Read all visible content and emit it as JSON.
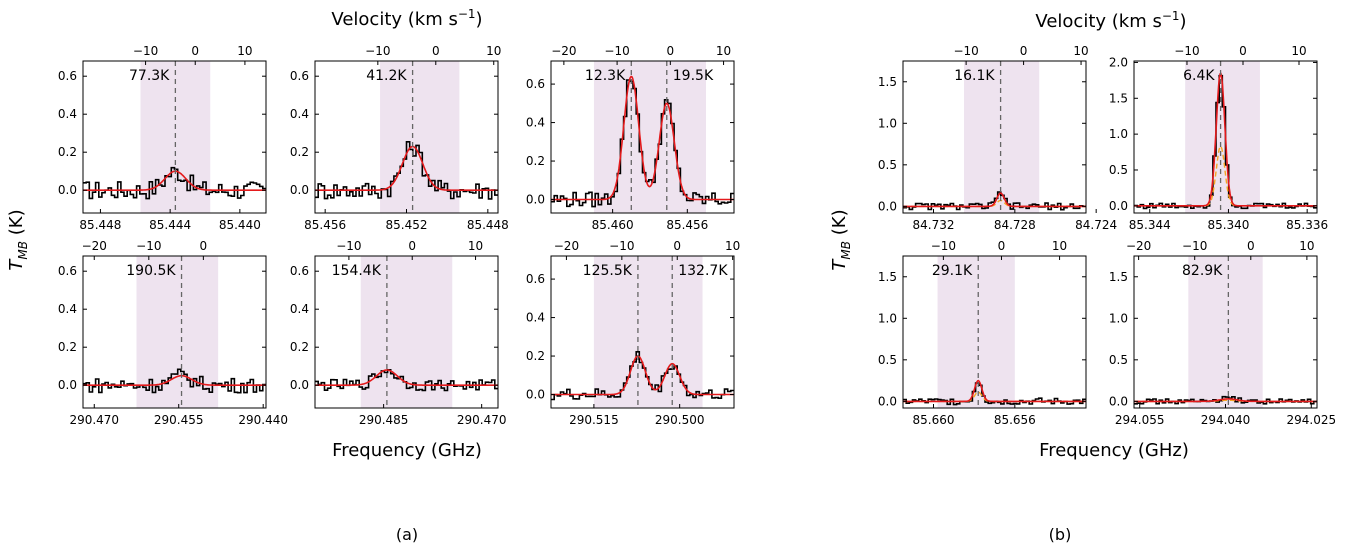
{
  "figure": {
    "top_axis_label": "Velocity (km s$^{-1}$)",
    "top_axis_label_text": "Velocity (km s",
    "top_axis_label_sup": "−1",
    "top_axis_label_close": ")",
    "y_axis_label": "T",
    "y_axis_label_sub": "MB",
    "y_axis_label_unit": " (K)",
    "x_axis_label": "Frequency (GHz)",
    "captions": [
      "(a)",
      "(b)"
    ],
    "colors": {
      "spectrum": "#000000",
      "fit": "#e41a1c",
      "component_orange": "#f5a623",
      "component_blue": "#5b5bd6",
      "shading": "#eee3ef",
      "marker": "#666666"
    }
  },
  "chart_data": [
    {
      "type": "line",
      "panel": "a-1",
      "x_range": [
        85.449,
        85.4385
      ],
      "x_ticks": [
        85.448,
        85.444,
        85.44
      ],
      "x_tick_labels": [
        "85.448",
        "85.444",
        "85.440"
      ],
      "ylim": [
        -0.12,
        0.68
      ],
      "y_ticks": [
        0.0,
        0.2,
        0.4,
        0.6
      ],
      "y_tick_labels": [
        "0.0",
        "0.2",
        "0.4",
        "0.6"
      ],
      "vel_ticks": [
        -10,
        0,
        10
      ],
      "vel_tick_labels": [
        "−10",
        "0",
        "10"
      ],
      "shade": [
        85.4457,
        85.4417
      ],
      "lines": [
        {
          "center": 85.4437,
          "label": "77.3K",
          "amp": 0.1,
          "sigma": 0.0006
        }
      ],
      "baseline": 0.0,
      "noise": 0.05
    },
    {
      "type": "line",
      "panel": "a-2",
      "x_range": [
        85.4565,
        85.4475
      ],
      "x_ticks": [
        85.456,
        85.452,
        85.448
      ],
      "x_tick_labels": [
        "85.456",
        "85.452",
        "85.448"
      ],
      "ylim": [
        -0.12,
        0.68
      ],
      "y_ticks": [
        0.0,
        0.2,
        0.4,
        0.6
      ],
      "y_tick_labels": [
        "0.0",
        "0.2",
        "0.4",
        "0.6"
      ],
      "vel_ticks": [
        -10,
        0,
        10
      ],
      "vel_tick_labels": [
        "−10",
        "0",
        "10"
      ],
      "shade": [
        85.4533,
        85.4494
      ],
      "lines": [
        {
          "center": 85.4517,
          "label": "41.2K",
          "amp": 0.23,
          "sigma": 0.0005
        }
      ],
      "baseline": 0.0,
      "noise": 0.05
    },
    {
      "type": "line",
      "panel": "a-3",
      "x_range": [
        85.4633,
        85.4535
      ],
      "x_ticks": [
        85.46,
        85.456
      ],
      "x_tick_labels": [
        "85.460",
        "85.456"
      ],
      "ylim": [
        -0.07,
        0.72
      ],
      "y_ticks": [
        0.0,
        0.2,
        0.4,
        0.6
      ],
      "y_tick_labels": [
        "0.0",
        "0.2",
        "0.4",
        "0.6"
      ],
      "vel_ticks": [
        -20,
        -10,
        0,
        10
      ],
      "vel_tick_labels": [
        "−20",
        "−10",
        "0",
        "10"
      ],
      "shade": [
        85.461,
        85.455
      ],
      "lines": [
        {
          "center": 85.459,
          "label": "12.3K",
          "amp": 0.64,
          "sigma": 0.0004
        },
        {
          "center": 85.4571,
          "label": "19.5K",
          "amp": 0.5,
          "sigma": 0.0004
        }
      ],
      "baseline": 0.0,
      "noise": 0.04
    },
    {
      "type": "line",
      "panel": "a-4",
      "x_range": [
        290.472,
        290.4395
      ],
      "x_ticks": [
        290.47,
        290.455,
        290.44
      ],
      "x_tick_labels": [
        "290.470",
        "290.455",
        "290.440"
      ],
      "ylim": [
        -0.12,
        0.68
      ],
      "y_ticks": [
        0.0,
        0.2,
        0.4,
        0.6
      ],
      "y_tick_labels": [
        "0.0",
        "0.2",
        "0.4",
        "0.6"
      ],
      "vel_ticks": [
        -20,
        -10,
        0
      ],
      "vel_tick_labels": [
        "−20",
        "−10",
        "0"
      ],
      "shade": [
        290.4625,
        290.448
      ],
      "lines": [
        {
          "center": 290.4545,
          "label": "190.5K",
          "amp": 0.05,
          "sigma": 0.0018
        }
      ],
      "baseline": 0.0,
      "noise": 0.04
    },
    {
      "type": "line",
      "panel": "a-5",
      "x_range": [
        290.4955,
        290.4675
      ],
      "x_ticks": [
        290.485,
        290.47
      ],
      "x_tick_labels": [
        "290.485",
        "290.470"
      ],
      "ylim": [
        -0.12,
        0.68
      ],
      "y_ticks": [
        0.0,
        0.2,
        0.4,
        0.6
      ],
      "y_tick_labels": [
        "0.0",
        "0.2",
        "0.4",
        "0.6"
      ],
      "vel_ticks": [
        -10,
        0,
        10
      ],
      "vel_tick_labels": [
        "−10",
        "0",
        "10"
      ],
      "shade": [
        290.4885,
        290.4745
      ],
      "lines": [
        {
          "center": 290.4845,
          "label": "154.4K",
          "amp": 0.08,
          "sigma": 0.0016
        }
      ],
      "baseline": 0.0,
      "noise": 0.03
    },
    {
      "type": "line",
      "panel": "a-6",
      "x_range": [
        290.5225,
        290.4905
      ],
      "x_ticks": [
        290.515,
        290.5
      ],
      "x_tick_labels": [
        "290.515",
        "290.500"
      ],
      "ylim": [
        -0.07,
        0.72
      ],
      "y_ticks": [
        0.0,
        0.2,
        0.4,
        0.6
      ],
      "y_tick_labels": [
        "0.0",
        "0.2",
        "0.4",
        "0.6"
      ],
      "vel_ticks": [
        -20,
        -10,
        0,
        10
      ],
      "vel_tick_labels": [
        "−20",
        "−10",
        "0",
        "10"
      ],
      "shade": [
        290.515,
        290.496
      ],
      "lines": [
        {
          "center": 290.5073,
          "label": "125.5K",
          "amp": 0.2,
          "sigma": 0.0013
        },
        {
          "center": 290.5013,
          "label": "132.7K",
          "amp": 0.16,
          "sigma": 0.0013
        }
      ],
      "baseline": 0.0,
      "noise": 0.03
    },
    {
      "type": "line",
      "panel": "b-1",
      "x_range": [
        84.7335,
        84.7245
      ],
      "x_ticks": [
        84.732,
        84.728,
        84.724
      ],
      "x_tick_labels": [
        "84.732",
        "84.728",
        "84.724"
      ],
      "ylim": [
        -0.08,
        1.75
      ],
      "y_ticks": [
        0.0,
        0.5,
        1.0,
        1.5
      ],
      "y_tick_labels": [
        "0.0",
        "0.5",
        "1.0",
        "1.5"
      ],
      "vel_ticks": [
        -10,
        0,
        10
      ],
      "vel_tick_labels": [
        "−10",
        "0",
        "10"
      ],
      "shade": [
        84.7305,
        84.7268
      ],
      "lines": [
        {
          "center": 84.7287,
          "label": "16.1K",
          "amp": 0.16,
          "sigma": 0.00018
        }
      ],
      "baseline": 0.0,
      "noise": 0.04
    },
    {
      "type": "line",
      "panel": "b-2",
      "x_range": [
        85.3448,
        85.3355
      ],
      "x_ticks": [
        85.344,
        85.34,
        85.336
      ],
      "x_tick_labels": [
        "85.344",
        "85.340",
        "85.336"
      ],
      "ylim": [
        -0.1,
        2.02
      ],
      "y_ticks": [
        0.0,
        0.5,
        1.0,
        1.5,
        2.0
      ],
      "y_tick_labels": [
        "0.0",
        "0.5",
        "1.0",
        "1.5",
        "2.0"
      ],
      "vel_ticks": [
        -10,
        0,
        10
      ],
      "vel_tick_labels": [
        "−10",
        "0",
        "10"
      ],
      "shade": [
        85.3422,
        85.3384
      ],
      "lines": [
        {
          "center": 85.3404,
          "label": "6.4K",
          "amp": 1.85,
          "sigma": 0.00022
        }
      ],
      "baseline": 0.0,
      "noise": 0.04
    },
    {
      "type": "line",
      "panel": "b-3",
      "x_range": [
        85.6615,
        85.6525
      ],
      "x_ticks": [
        85.66,
        85.656
      ],
      "x_tick_labels": [
        "85.660",
        "85.656"
      ],
      "ylim": [
        -0.08,
        1.75
      ],
      "y_ticks": [
        0.0,
        0.5,
        1.0,
        1.5
      ],
      "y_tick_labels": [
        "0.0",
        "0.5",
        "1.0",
        "1.5"
      ],
      "vel_ticks": [
        -10,
        0,
        10
      ],
      "vel_tick_labels": [
        "−10",
        "0",
        "10"
      ],
      "shade": [
        85.6598,
        85.656
      ],
      "lines": [
        {
          "center": 85.6578,
          "label": "29.1K",
          "amp": 0.25,
          "sigma": 0.00018
        }
      ],
      "baseline": 0.0,
      "noise": 0.04
    },
    {
      "type": "line",
      "panel": "b-4",
      "x_range": [
        294.056,
        294.024
      ],
      "x_ticks": [
        294.055,
        294.04,
        294.025
      ],
      "x_tick_labels": [
        "294.055",
        "294.040",
        "294.025"
      ],
      "ylim": [
        -0.08,
        1.75
      ],
      "y_ticks": [
        0.0,
        0.5,
        1.0,
        1.5
      ],
      "y_tick_labels": [
        "0.0",
        "0.5",
        "1.0",
        "1.5"
      ],
      "vel_ticks": [
        -20,
        -10,
        0,
        10
      ],
      "vel_tick_labels": [
        "−20",
        "−10",
        "0",
        "10"
      ],
      "shade": [
        294.0465,
        294.0335
      ],
      "lines": [
        {
          "center": 294.0395,
          "label": "82.9K",
          "amp": 0.03,
          "sigma": 0.0015
        }
      ],
      "baseline": 0.0,
      "noise": 0.03
    }
  ]
}
